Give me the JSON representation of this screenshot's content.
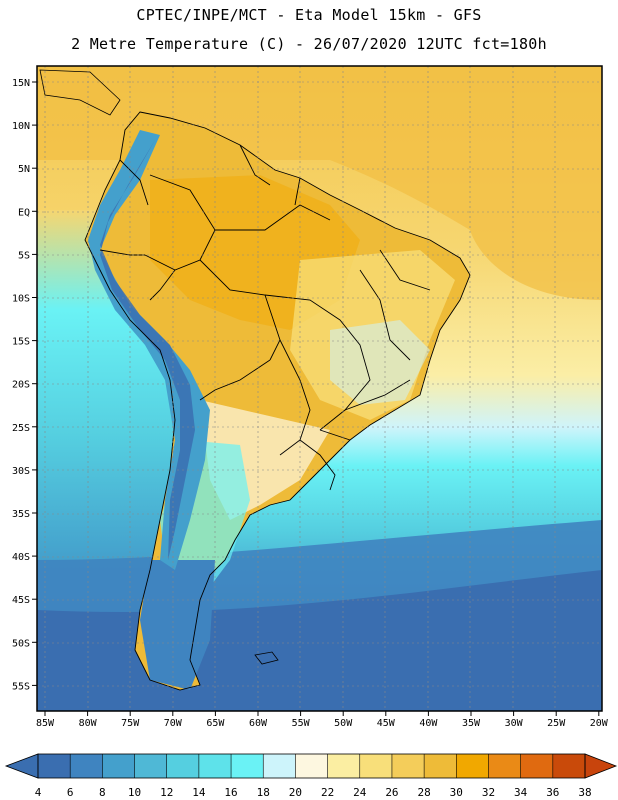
{
  "header": {
    "line1": "CPTEC/INPE/MCT -  Eta Model 15km - GFS",
    "line2": "2 Metre Temperature (C) - 26/07/2020 12UTC fct=180h"
  },
  "axes": {
    "lon_labels": [
      "85W",
      "80W",
      "75W",
      "70W",
      "65W",
      "60W",
      "55W",
      "50W",
      "45W",
      "40W",
      "35W",
      "30W",
      "25W",
      "20W"
    ],
    "lat_labels": [
      "15N",
      "10N",
      "5N",
      "EQ",
      "5S",
      "10S",
      "15S",
      "20S",
      "25S",
      "30S",
      "35S",
      "40S",
      "45S",
      "50S",
      "55S"
    ]
  },
  "colorbar": {
    "labels": [
      "4",
      "6",
      "8",
      "10",
      "12",
      "14",
      "16",
      "18",
      "20",
      "22",
      "24",
      "26",
      "28",
      "30",
      "32",
      "34",
      "36",
      "38"
    ],
    "colors": [
      "#3a6eb0",
      "#3f84c0",
      "#44a0cc",
      "#4fb8d6",
      "#55cfe0",
      "#5ee2ea",
      "#6af2f5",
      "#cdf4fb",
      "#fdf7e0",
      "#fbeea2",
      "#f8df7a",
      "#f4cd5a",
      "#eebb38",
      "#f1a800",
      "#ea8a16",
      "#e06a10",
      "#c94a0a"
    ],
    "under_color": "#3a6eb0",
    "over_color": "#c8440c"
  },
  "map": {
    "ocean_warm": "#f6d26b",
    "ocean_mid": "#faeea6",
    "ocean_cool": "#6cf0f6",
    "ocean_cold": "#3a70b0",
    "land_warm": "#eebb38",
    "andes_cold": "#3f84c0",
    "border_color": "#000000"
  }
}
